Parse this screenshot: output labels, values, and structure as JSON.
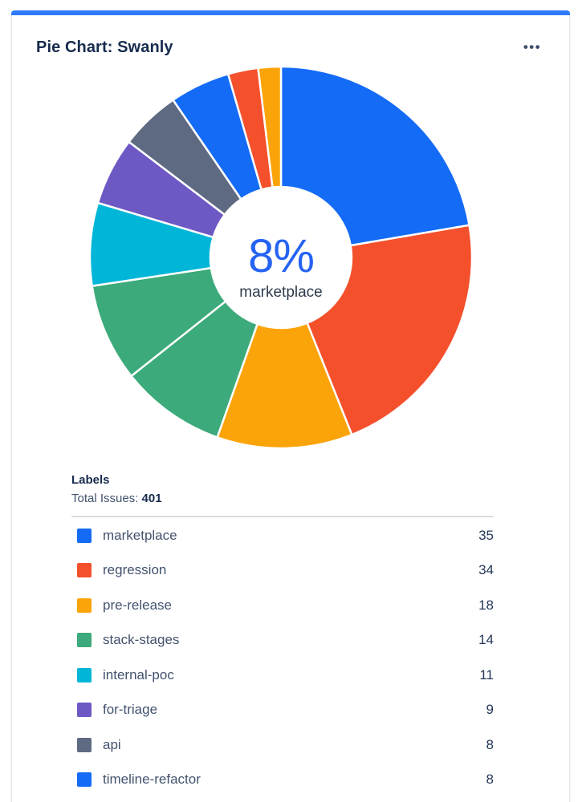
{
  "header": {
    "title": "Pie Chart: Swanly",
    "menu_icon": "•••"
  },
  "colors": {
    "top_accent_bar": "#2d7afa",
    "card_border": "#e4e6eb",
    "title_text": "#172b4d",
    "center_percent_text": "#2563f2",
    "legend_label_text": "#42526e",
    "legend_value_text": "#253858"
  },
  "chart_data": {
    "type": "pie",
    "style": "donut",
    "title": "Pie Chart: Swanly",
    "legend_position": "bottom",
    "center_label": {
      "value": "8%",
      "label": "marketplace"
    },
    "total_issues_shown": 401,
    "segments": [
      {
        "label": "marketplace",
        "value": 35,
        "color": "#146bf6"
      },
      {
        "label": "regression",
        "value": 34,
        "color": "#f4502c"
      },
      {
        "label": "pre-release",
        "value": 18,
        "color": "#fba40a"
      },
      {
        "label": "stack-stages",
        "value": 14,
        "color": "#3caa7a"
      },
      {
        "label": "",
        "value": 13,
        "color": "#3caa7a",
        "estimated": true
      },
      {
        "label": "internal-poc",
        "value": 11,
        "color": "#00b6d8"
      },
      {
        "label": "for-triage",
        "value": 9,
        "color": "#6e59c4"
      },
      {
        "label": "api",
        "value": 8,
        "color": "#5e6a82"
      },
      {
        "label": "timeline-refactor",
        "value": 8,
        "color": "#146bf6"
      },
      {
        "label": "",
        "value": 4,
        "color": "#f4502c",
        "estimated": true
      },
      {
        "label": "",
        "value": 3,
        "color": "#fba40a",
        "estimated": true
      }
    ],
    "geometry": {
      "outer_radius": 238,
      "inner_radius": 88,
      "start_angle_deg": 0,
      "clockwise": true,
      "slice_gap_stroke": "#ffffff"
    }
  },
  "legend": {
    "heading": "Labels",
    "total_label": "Total Issues:",
    "total_value": "401",
    "rows": [
      {
        "label": "marketplace",
        "value": 35,
        "color": "#146bf6"
      },
      {
        "label": "regression",
        "value": 34,
        "color": "#f4502c"
      },
      {
        "label": "pre-release",
        "value": 18,
        "color": "#fba40a"
      },
      {
        "label": "stack-stages",
        "value": 14,
        "color": "#3caa7a"
      },
      {
        "label": "internal-poc",
        "value": 11,
        "color": "#00b6d8"
      },
      {
        "label": "for-triage",
        "value": 9,
        "color": "#6e59c4"
      },
      {
        "label": "api",
        "value": 8,
        "color": "#5e6a82"
      },
      {
        "label": "timeline-refactor",
        "value": 8,
        "color": "#146bf6"
      }
    ]
  }
}
